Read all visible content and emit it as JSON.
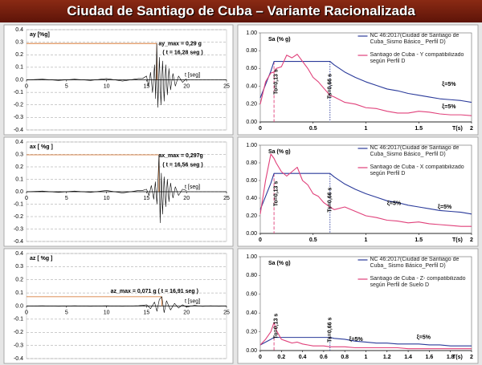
{
  "header": {
    "title": "Ciudad de Santiago de Cuba – Variante Racionalizada"
  },
  "chart_data": [
    {
      "type": "line",
      "ylabel": "ay [%g]",
      "xlabel": "t [seg]",
      "x": [
        0,
        2,
        4,
        6,
        8,
        10,
        12,
        14,
        14.5,
        15,
        15.25,
        15.5,
        15.75,
        16,
        16.14,
        16.28,
        16.42,
        16.6,
        16.8,
        17,
        17.2,
        17.4,
        17.6,
        17.8,
        18,
        18.3,
        18.6,
        19,
        19.5,
        20
      ],
      "series": [
        {
          "color": "#000000",
          "values": [
            0,
            0.005,
            -0.005,
            0.005,
            -0.005,
            0.01,
            -0.01,
            0.01,
            0.01,
            0.03,
            -0.05,
            0.06,
            -0.1,
            0.12,
            -0.15,
            0.29,
            -0.22,
            0.18,
            -0.2,
            0.15,
            -0.17,
            0.12,
            -0.12,
            0.09,
            -0.08,
            0.05,
            -0.05,
            0.03,
            -0.02,
            0.01
          ]
        }
      ],
      "xlim": [
        0,
        25
      ],
      "xticks": [
        0,
        5,
        10,
        15,
        20,
        25
      ],
      "ylim": [
        -0.4,
        0.4
      ],
      "yticks": [
        0.4,
        0.3,
        0.2,
        0.1,
        {
          "value": 0,
          "label": "0.0"
        },
        -0.1,
        -0.2,
        -0.3,
        -0.4
      ],
      "grid": true,
      "peak": {
        "x": 16.28,
        "y": 0.29
      },
      "peak_color": "#d2691e",
      "annotations": [
        "ay_max = 0,29 g",
        "( t = 16,28 seg )"
      ]
    },
    {
      "type": "line",
      "ylabel": "Sa (% g)",
      "xlabel": "T(s)",
      "x": [
        0,
        0.05,
        0.1,
        0.13,
        0.15,
        0.2,
        0.25,
        0.3,
        0.35,
        0.4,
        0.45,
        0.5,
        0.55,
        0.6,
        0.66,
        0.7,
        0.8,
        0.9,
        1.0,
        1.1,
        1.2,
        1.3,
        1.4,
        1.5,
        1.6,
        1.7,
        1.8,
        1.9,
        2.0
      ],
      "series": [
        {
          "name": "NC 46:2017(Ciudad de Santiago de Cuba_Sismo Básico_ Perfil D)",
          "color": "#2a3a9a",
          "values": [
            0.27,
            0.42,
            0.57,
            0.68,
            0.68,
            0.68,
            0.68,
            0.68,
            0.68,
            0.68,
            0.68,
            0.68,
            0.68,
            0.68,
            0.68,
            0.64,
            0.56,
            0.5,
            0.45,
            0.41,
            0.37,
            0.35,
            0.32,
            0.3,
            0.28,
            0.26,
            0.25,
            0.24,
            0.22
          ]
        },
        {
          "name": "Santiago de Cuba - Y compatibilizado según  Perfil D",
          "color": "#e0407a",
          "values": [
            0.2,
            0.45,
            0.55,
            0.56,
            0.6,
            0.62,
            0.75,
            0.72,
            0.76,
            0.68,
            0.6,
            0.5,
            0.45,
            0.38,
            0.3,
            0.28,
            0.22,
            0.2,
            0.16,
            0.15,
            0.12,
            0.1,
            0.1,
            0.12,
            0.11,
            0.09,
            0.08,
            0.08,
            0.07
          ]
        }
      ],
      "xlim": [
        0,
        2
      ],
      "xticks": [
        0,
        0.5,
        1,
        1.5,
        2
      ],
      "ylim": [
        0,
        1
      ],
      "yticks": [
        {
          "value": 0,
          "label": "0.00"
        },
        {
          "value": 0.2,
          "label": "0.20"
        },
        {
          "value": 0.4,
          "label": "0.40"
        },
        {
          "value": 0.6,
          "label": "0.60"
        },
        {
          "value": 0.8,
          "label": "0.80"
        },
        {
          "value": 1,
          "label": "1.00"
        }
      ],
      "grid": false,
      "vlines": [
        0.13,
        0.66
      ],
      "annotations": [
        "To=0,13 s",
        "Ts=0,66 s",
        "ξ=5%",
        "ξ=5%"
      ]
    },
    {
      "type": "line",
      "ylabel": "ax [ %g ]",
      "xlabel": "t [seg]",
      "x": [
        0,
        2,
        4,
        6,
        8,
        10,
        12,
        14,
        14.5,
        15,
        15.3,
        15.6,
        15.9,
        16.1,
        16.3,
        16.45,
        16.56,
        16.7,
        16.85,
        17,
        17.2,
        17.4,
        17.6,
        17.8,
        18,
        18.3,
        18.6,
        19,
        19.5,
        20
      ],
      "series": [
        {
          "color": "#000000",
          "values": [
            0,
            0.005,
            -0.005,
            0.005,
            -0.005,
            0.01,
            -0.01,
            0.01,
            0.01,
            0.02,
            -0.03,
            0.05,
            -0.06,
            0.08,
            -0.1,
            0.12,
            0.297,
            -0.25,
            0.15,
            -0.18,
            0.12,
            -0.12,
            0.1,
            -0.08,
            0.07,
            -0.05,
            0.04,
            -0.03,
            0.02,
            0.01
          ]
        }
      ],
      "xlim": [
        0,
        25
      ],
      "xticks": [
        0,
        5,
        10,
        15,
        20,
        25
      ],
      "ylim": [
        -0.4,
        0.4
      ],
      "yticks": [
        0.4,
        0.3,
        0.2,
        0.1,
        {
          "value": 0,
          "label": "0.0"
        },
        -0.1,
        -0.2,
        -0.3,
        -0.4
      ],
      "grid": true,
      "peak": {
        "x": 16.56,
        "y": 0.297
      },
      "peak_color": "#d2691e",
      "annotations": [
        "ax_max = 0,297g",
        "( t = 16,56 seg )"
      ]
    },
    {
      "type": "line",
      "ylabel": "Sa (% g)",
      "xlabel": "T(s)",
      "x": [
        0,
        0.05,
        0.1,
        0.13,
        0.15,
        0.2,
        0.25,
        0.3,
        0.35,
        0.4,
        0.45,
        0.5,
        0.55,
        0.6,
        0.66,
        0.7,
        0.8,
        0.9,
        1.0,
        1.1,
        1.2,
        1.3,
        1.4,
        1.5,
        1.6,
        1.7,
        1.8,
        1.9,
        2.0
      ],
      "series": [
        {
          "name": "NC 46:2017(Ciudad de Santiago de Cuba_Sismo Básico_ Perfil D)",
          "color": "#2a3a9a",
          "values": [
            0.27,
            0.42,
            0.57,
            0.68,
            0.68,
            0.68,
            0.68,
            0.68,
            0.68,
            0.68,
            0.68,
            0.68,
            0.68,
            0.68,
            0.68,
            0.64,
            0.56,
            0.5,
            0.45,
            0.41,
            0.37,
            0.35,
            0.32,
            0.3,
            0.28,
            0.26,
            0.25,
            0.24,
            0.22
          ]
        },
        {
          "name": "Santiago de Cuba - X compatibilizado según Perfil D",
          "color": "#e0407a",
          "values": [
            0.22,
            0.6,
            0.9,
            0.85,
            0.8,
            0.7,
            0.65,
            0.7,
            0.75,
            0.6,
            0.55,
            0.45,
            0.42,
            0.35,
            0.3,
            0.27,
            0.3,
            0.25,
            0.2,
            0.18,
            0.15,
            0.14,
            0.12,
            0.13,
            0.11,
            0.1,
            0.09,
            0.08,
            0.08
          ]
        }
      ],
      "xlim": [
        0,
        2
      ],
      "xticks": [
        0,
        0.5,
        1,
        1.5,
        2
      ],
      "ylim": [
        0,
        1
      ],
      "yticks": [
        {
          "value": 0,
          "label": "0.00"
        },
        {
          "value": 0.2,
          "label": "0.20"
        },
        {
          "value": 0.4,
          "label": "0.40"
        },
        {
          "value": 0.6,
          "label": "0.60"
        },
        {
          "value": 0.8,
          "label": "0.80"
        },
        {
          "value": 1,
          "label": "1.00"
        }
      ],
      "grid": false,
      "vlines": [
        0.13,
        0.66
      ],
      "annotations": [
        "To=0,13 s",
        "Ts=0,66 s",
        "ξ=5%",
        "ξ=5%"
      ]
    },
    {
      "type": "line",
      "ylabel": "az [ %g ]",
      "xlabel": "t [seg]",
      "x": [
        0,
        2,
        4,
        6,
        8,
        10,
        12,
        14,
        14.5,
        15,
        15.5,
        16,
        16.3,
        16.6,
        16.91,
        17.2,
        17.5,
        18,
        18.5,
        19,
        19.5,
        20,
        21,
        22,
        23,
        24,
        25
      ],
      "series": [
        {
          "color": "#000000",
          "values": [
            0,
            0.002,
            -0.002,
            0.002,
            -0.002,
            0.002,
            -0.002,
            0.003,
            0.005,
            0.01,
            -0.02,
            0.03,
            -0.04,
            0.05,
            0.071,
            -0.05,
            0.04,
            -0.03,
            0.02,
            -0.015,
            0.01,
            -0.008,
            0.005,
            -0.003,
            0.002,
            -0.002,
            0
          ]
        }
      ],
      "xlim": [
        0,
        25
      ],
      "xticks": [
        0,
        5,
        10,
        15,
        20,
        25
      ],
      "ylim": [
        -0.4,
        0.4
      ],
      "yticks": [
        0.4,
        0.3,
        0.2,
        0.1,
        {
          "value": 0,
          "label": "0.0"
        },
        -0.1,
        -0.2,
        -0.3,
        -0.4
      ],
      "grid": true,
      "peak": {
        "x": 16.91,
        "y": 0.071
      },
      "peak_color": "#d2691e",
      "annotations": [
        "az_max = 0,071 g   ( t = 16,91 seg )"
      ]
    },
    {
      "type": "line",
      "ylabel": "Sa (% g)",
      "xlabel": "T(s)",
      "x": [
        0,
        0.05,
        0.1,
        0.13,
        0.15,
        0.2,
        0.25,
        0.3,
        0.35,
        0.4,
        0.45,
        0.5,
        0.55,
        0.6,
        0.66,
        0.7,
        0.8,
        0.9,
        1.0,
        1.1,
        1.2,
        1.3,
        1.4,
        1.5,
        1.6,
        1.7,
        1.8,
        1.9,
        2.0
      ],
      "series": [
        {
          "name": "NC 46:2017(Ciudad de Santiago de Cuba_ Sismo Básico_Perfil D)",
          "color": "#2a3a9a",
          "values": [
            0.06,
            0.09,
            0.12,
            0.14,
            0.14,
            0.14,
            0.14,
            0.14,
            0.14,
            0.14,
            0.14,
            0.14,
            0.14,
            0.14,
            0.14,
            0.13,
            0.12,
            0.1,
            0.09,
            0.08,
            0.08,
            0.07,
            0.07,
            0.07,
            0.06,
            0.06,
            0.05,
            0.05,
            0.05
          ]
        },
        {
          "name": "Santiago de Cuba - Z- compatibilizado según Perfil de Suelo D",
          "color": "#e0407a",
          "values": [
            0.06,
            0.12,
            0.2,
            0.3,
            0.22,
            0.12,
            0.1,
            0.08,
            0.09,
            0.07,
            0.06,
            0.05,
            0.05,
            0.05,
            0.04,
            0.04,
            0.04,
            0.03,
            0.03,
            0.03,
            0.03,
            0.03,
            0.02,
            0.02,
            0.02,
            0.02,
            0.02,
            0.02,
            0.02
          ]
        }
      ],
      "xlim": [
        0,
        2
      ],
      "xticks": [
        0,
        0.2,
        0.4,
        0.6,
        0.8,
        1,
        1.2,
        1.4,
        1.6,
        1.8,
        2
      ],
      "ylim": [
        0,
        1
      ],
      "yticks": [
        {
          "value": 0,
          "label": "0.00"
        },
        {
          "value": 0.2,
          "label": "0.20"
        },
        {
          "value": 0.4,
          "label": "0.40"
        },
        {
          "value": 0.6,
          "label": "0.60"
        },
        {
          "value": 0.8,
          "label": "0.80"
        },
        {
          "value": 1,
          "label": "1.00"
        }
      ],
      "grid": false,
      "vlines": [
        0.13,
        0.66
      ],
      "annotations": [
        "To=0,13 s",
        "Ts=0,66 s",
        "ξ=5%",
        "ξ=5%"
      ]
    }
  ]
}
